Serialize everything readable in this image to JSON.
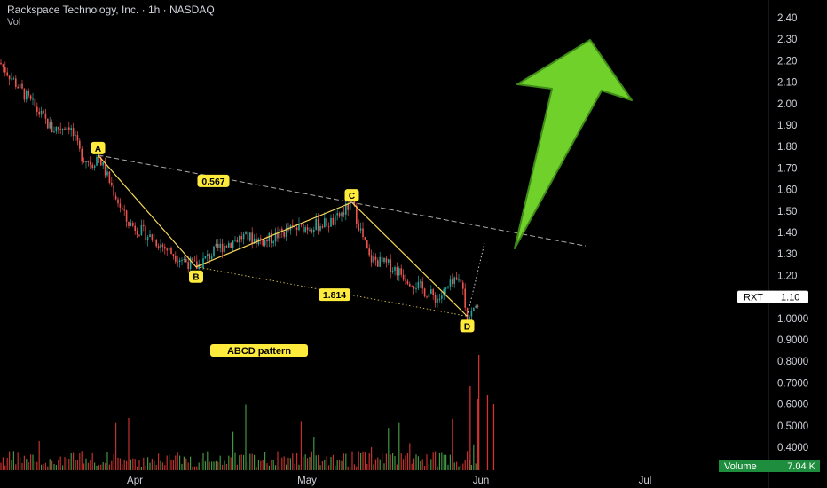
{
  "header": {
    "title": "Rackspace Technology, Inc. · 1h · NASDAQ",
    "vol_label": "Vol"
  },
  "colors": {
    "background": "#000000",
    "up": "#26a69a",
    "down": "#ef5350",
    "vol_up": "#4caf50",
    "vol_down": "#e53935",
    "pattern_line": "#f5d65a",
    "label_bg": "#ffeb3b",
    "arrow": "#6fd12a",
    "trend_line": "#aaaaaa",
    "volume_badge": "#1e8e3e"
  },
  "chart_data": {
    "type": "candlestick",
    "x_tick_labels": [
      "Apr",
      "May",
      "Jun",
      "Jul"
    ],
    "y_tick_labels": [
      "2.40",
      "2.30",
      "2.20",
      "2.10",
      "2.00",
      "1.90",
      "1.80",
      "1.70",
      "1.60",
      "1.50",
      "1.40",
      "1.30",
      "1.20",
      "1.10",
      "1.0000",
      "0.9000",
      "0.8000",
      "0.7000",
      "0.6000",
      "0.5000",
      "0.4000"
    ],
    "y_tick_values": [
      2.4,
      2.3,
      2.2,
      2.1,
      2.0,
      1.9,
      1.8,
      1.7,
      1.6,
      1.5,
      1.4,
      1.3,
      1.2,
      1.1,
      1.0,
      0.9,
      0.8,
      0.7,
      0.6,
      0.5,
      0.4
    ],
    "price_path": [
      {
        "date": "2021-03-11",
        "price": 2.19
      },
      {
        "date": "2021-03-13",
        "price": 2.12
      },
      {
        "date": "2021-03-15",
        "price": 2.05
      },
      {
        "date": "2021-03-18",
        "price": 1.95
      },
      {
        "date": "2021-03-20",
        "price": 1.88
      },
      {
        "date": "2021-03-23",
        "price": 1.9
      },
      {
        "date": "2021-03-25",
        "price": 1.76
      },
      {
        "date": "2021-03-27",
        "price": 1.72
      },
      {
        "date": "2021-03-28",
        "price": 1.76
      },
      {
        "date": "2021-04-02",
        "price": 1.45
      },
      {
        "date": "2021-04-06",
        "price": 1.38
      },
      {
        "date": "2021-04-10",
        "price": 1.3
      },
      {
        "date": "2021-04-14",
        "price": 1.24
      },
      {
        "date": "2021-04-18",
        "price": 1.33
      },
      {
        "date": "2021-04-22",
        "price": 1.38
      },
      {
        "date": "2021-04-26",
        "price": 1.36
      },
      {
        "date": "2021-04-30",
        "price": 1.41
      },
      {
        "date": "2021-05-04",
        "price": 1.43
      },
      {
        "date": "2021-05-08",
        "price": 1.45
      },
      {
        "date": "2021-05-11",
        "price": 1.54
      },
      {
        "date": "2021-05-14",
        "price": 1.28
      },
      {
        "date": "2021-05-18",
        "price": 1.24
      },
      {
        "date": "2021-05-21",
        "price": 1.18
      },
      {
        "date": "2021-05-24",
        "price": 1.12
      },
      {
        "date": "2021-05-26",
        "price": 1.09
      },
      {
        "date": "2021-05-28",
        "price": 1.15
      },
      {
        "date": "2021-05-30",
        "price": 1.18
      },
      {
        "date": "2021-05-31",
        "price": 1.01
      },
      {
        "date": "2021-06-01",
        "price": 1.03
      },
      {
        "date": "2021-06-02",
        "price": 1.08
      }
    ],
    "pattern": {
      "name": "ABCD pattern",
      "points": [
        {
          "label": "A",
          "date": "2021-03-28",
          "price": 1.76
        },
        {
          "label": "B",
          "date": "2021-04-14",
          "price": 1.24
        },
        {
          "label": "C",
          "date": "2021-05-11",
          "price": 1.54
        },
        {
          "label": "D",
          "date": "2021-05-31",
          "price": 1.01
        }
      ],
      "ratios": [
        {
          "text": "0.567",
          "date": "2021-04-17",
          "price": 1.64
        },
        {
          "text": "1.814",
          "date": "2021-05-08",
          "price": 1.11
        }
      ],
      "projection": {
        "date": "2021-06-03",
        "price": 1.35
      }
    },
    "price_badge": {
      "symbol": "RXT",
      "value": "1.10",
      "price": 1.1
    },
    "volume": {
      "label": "Volume",
      "value": "7.04 K"
    }
  }
}
